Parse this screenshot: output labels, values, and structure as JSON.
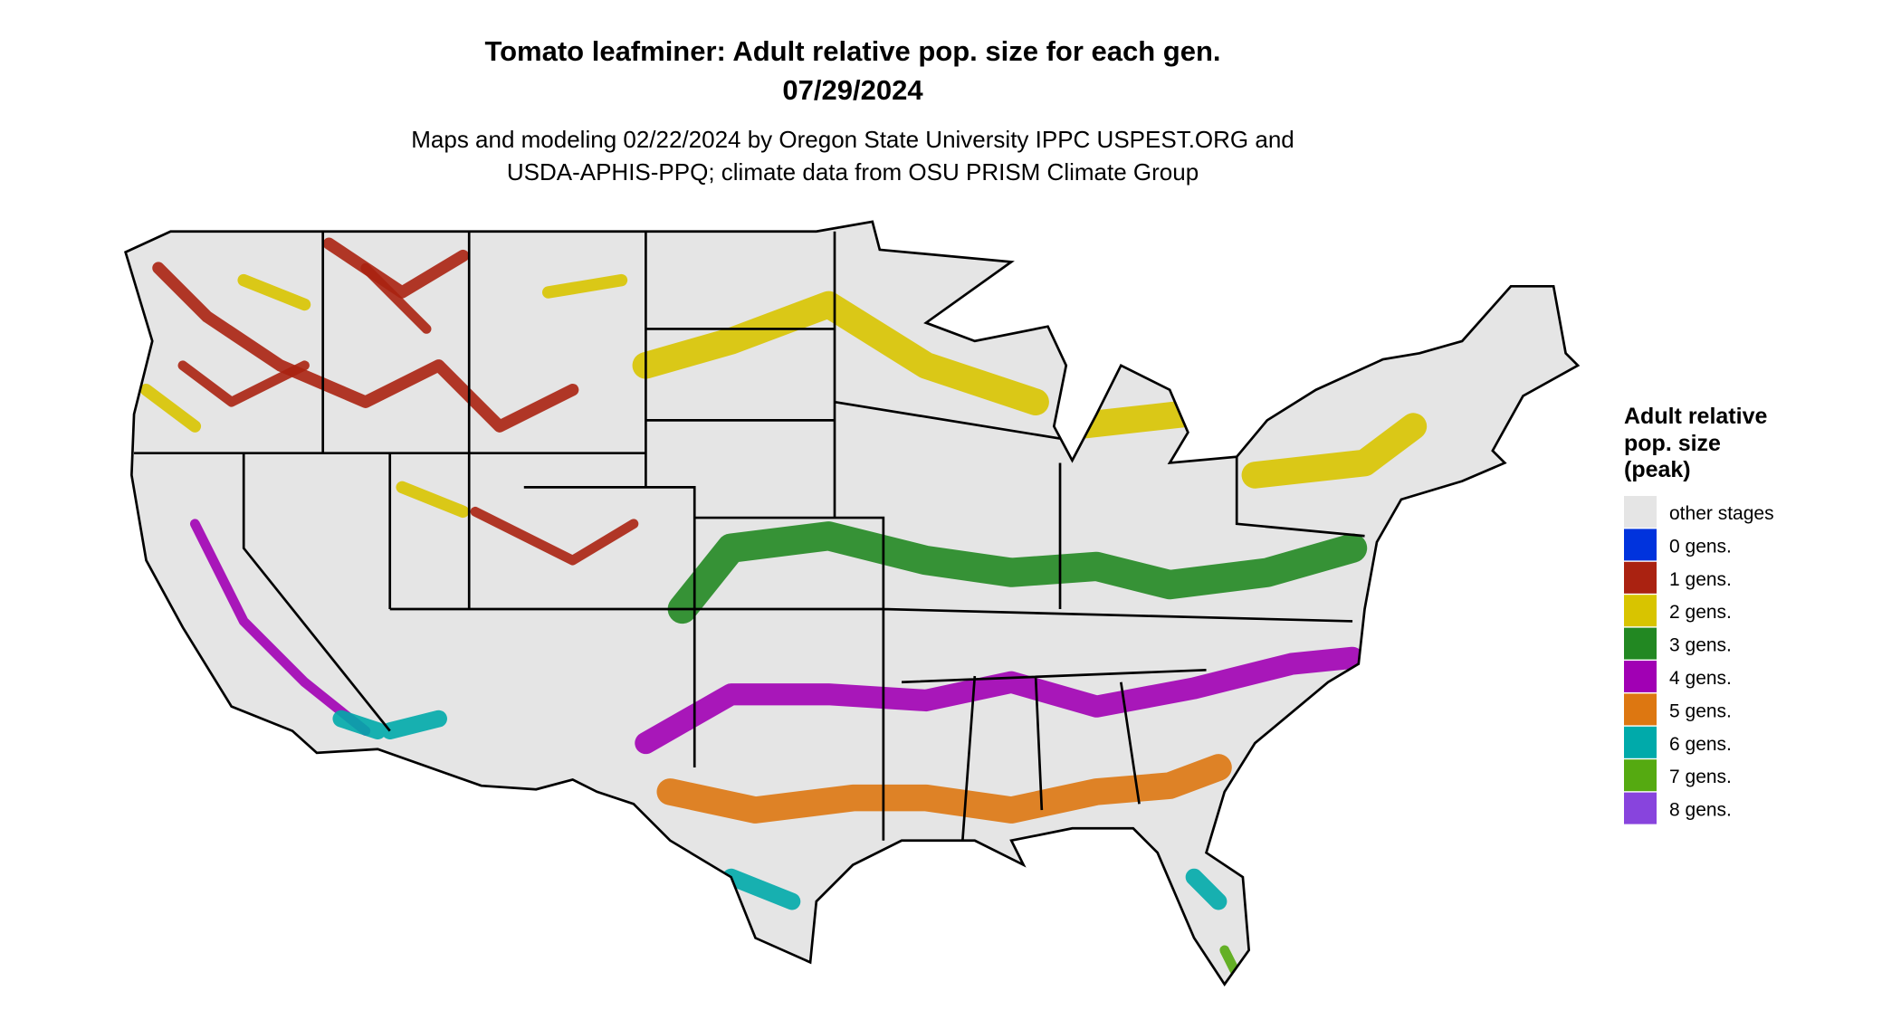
{
  "header": {
    "title": "Tomato leafminer: Adult relative pop. size for each gen.",
    "date": "07/29/2024",
    "subtitle": [
      "Maps and modeling 02/22/2024 by Oregon State University IPPC USPEST.ORG and",
      "USDA-APHIS-PPQ; climate data from OSU PRISM Climate Group"
    ]
  },
  "legend": {
    "title": [
      "Adult relative",
      "pop. size",
      "(peak)"
    ],
    "items": [
      {
        "label": "other stages",
        "color": "#e5e5e5"
      },
      {
        "label": "0 gens.",
        "color": "#0033dd"
      },
      {
        "label": "1 gens.",
        "color": "#aa2211"
      },
      {
        "label": "2 gens.",
        "color": "#d8c400"
      },
      {
        "label": "3 gens.",
        "color": "#228822"
      },
      {
        "label": "4 gens.",
        "color": "#a100b4"
      },
      {
        "label": "5 gens.",
        "color": "#dd7711"
      },
      {
        "label": "6 gens.",
        "color": "#00aaaa"
      },
      {
        "label": "7 gens.",
        "color": "#55aa11"
      },
      {
        "label": "8 gens.",
        "color": "#8844dd"
      }
    ]
  }
}
